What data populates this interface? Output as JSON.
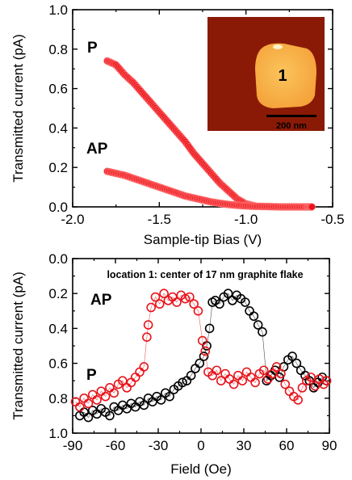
{
  "chart_data": [
    {
      "type": "scatter",
      "xlabel": "Sample-tip Bias (V)",
      "ylabel": "Transmitted current (pA)",
      "xlim": [
        -2.0,
        -0.5
      ],
      "ylim": [
        0.0,
        1.0
      ],
      "xticks": [
        "-2.0",
        "-1.5",
        "-1.0",
        "-0.5"
      ],
      "yticks": [
        "0.0",
        "0.2",
        "0.4",
        "0.6",
        "0.8",
        "1.0"
      ],
      "marker_color": "#e8141c",
      "series": [
        {
          "name": "P",
          "x": [
            -1.8,
            -1.75,
            -1.7,
            -1.65,
            -1.6,
            -1.55,
            -1.5,
            -1.45,
            -1.4,
            -1.35,
            -1.3,
            -1.25,
            -1.2,
            -1.15,
            -1.1,
            -1.05,
            -1.0,
            -0.95
          ],
          "y": [
            0.74,
            0.72,
            0.67,
            0.63,
            0.58,
            0.53,
            0.48,
            0.43,
            0.38,
            0.33,
            0.27,
            0.22,
            0.17,
            0.12,
            0.08,
            0.04,
            0.015,
            0.005
          ]
        },
        {
          "name": "AP",
          "x": [
            -1.8,
            -1.75,
            -1.7,
            -1.65,
            -1.6,
            -1.55,
            -1.5,
            -1.45,
            -1.4,
            -1.35,
            -1.3,
            -1.25,
            -1.2,
            -1.15,
            -1.1,
            -1.05,
            -1.0,
            -0.95,
            -0.9,
            -0.85,
            -0.8,
            -0.75,
            -0.7,
            -0.65,
            -0.62
          ],
          "y": [
            0.18,
            0.17,
            0.16,
            0.145,
            0.13,
            0.115,
            0.1,
            0.085,
            0.07,
            0.055,
            0.045,
            0.035,
            0.025,
            0.018,
            0.012,
            0.008,
            0.005,
            0.003,
            0.002,
            0.001,
            0.0,
            0.0,
            0.0,
            0.0,
            0.0
          ]
        }
      ],
      "inset": {
        "colors": {
          "background": "#8a1a06",
          "flake": "#f5a23a",
          "flake_center": "#fbc45c",
          "text": "#8f8a88"
        },
        "flake_label": "1",
        "scalebar_label": "200 nm"
      }
    },
    {
      "type": "scatter",
      "xlabel": "Field (Oe)",
      "ylabel": "Transmitted current (pA)",
      "annotation": "location 1:  center of 17 nm graphite flake",
      "xlim": [
        -90,
        90
      ],
      "ylim": [
        1.0,
        0.0
      ],
      "y_inverted": true,
      "xticks": [
        "-90",
        "-60",
        "-30",
        "0",
        "30",
        "60",
        "90"
      ],
      "yticks": [
        "0.0",
        "0.2",
        "0.4",
        "0.6",
        "0.8",
        "1.0"
      ],
      "labels": {
        "ap": "AP",
        "p": "P"
      },
      "series": [
        {
          "color": "#000000",
          "x": [
            -85,
            -82,
            -79,
            -76,
            -73,
            -70,
            -67,
            -64,
            -61,
            -58,
            -55,
            -52,
            -49,
            -46,
            -43,
            -40,
            -37,
            -34,
            -31,
            -28,
            -25,
            -22,
            -19,
            -16,
            -13,
            -10,
            -7,
            -4,
            -1,
            2,
            4,
            6,
            8,
            10,
            13,
            16,
            19,
            22,
            25,
            28,
            31,
            34,
            37,
            40,
            43,
            46,
            49,
            52,
            55,
            58,
            61,
            64,
            67,
            70,
            73,
            76,
            79,
            82,
            85,
            88
          ],
          "y": [
            0.9,
            0.88,
            0.91,
            0.87,
            0.89,
            0.86,
            0.88,
            0.9,
            0.85,
            0.87,
            0.84,
            0.86,
            0.83,
            0.85,
            0.82,
            0.84,
            0.8,
            0.82,
            0.79,
            0.81,
            0.77,
            0.79,
            0.75,
            0.73,
            0.71,
            0.7,
            0.67,
            0.63,
            0.6,
            0.56,
            0.5,
            0.4,
            0.25,
            0.24,
            0.26,
            0.22,
            0.2,
            0.24,
            0.21,
            0.23,
            0.25,
            0.3,
            0.33,
            0.38,
            0.42,
            0.7,
            0.67,
            0.64,
            0.68,
            0.62,
            0.58,
            0.56,
            0.6,
            0.64,
            0.67,
            0.7,
            0.74,
            0.71,
            0.68,
            0.7
          ]
        },
        {
          "color": "#e8141c",
          "x": [
            -88,
            -85,
            -82,
            -79,
            -76,
            -73,
            -70,
            -67,
            -64,
            -61,
            -58,
            -55,
            -52,
            -49,
            -46,
            -43,
            -40,
            -38,
            -37,
            -35,
            -32,
            -29,
            -26,
            -23,
            -20,
            -17,
            -14,
            -11,
            -8,
            -5,
            -2,
            1,
            3,
            5,
            8,
            11,
            14,
            17,
            20,
            23,
            26,
            29,
            32,
            35,
            38,
            41,
            44,
            47,
            50,
            53,
            56,
            59,
            62,
            65,
            68,
            71,
            74,
            77,
            80,
            83,
            86,
            88
          ],
          "y": [
            0.82,
            0.85,
            0.8,
            0.83,
            0.78,
            0.81,
            0.76,
            0.79,
            0.74,
            0.77,
            0.72,
            0.7,
            0.74,
            0.71,
            0.68,
            0.65,
            0.62,
            0.45,
            0.38,
            0.28,
            0.22,
            0.26,
            0.2,
            0.24,
            0.22,
            0.25,
            0.21,
            0.23,
            0.22,
            0.26,
            0.3,
            0.47,
            0.53,
            0.65,
            0.67,
            0.64,
            0.7,
            0.66,
            0.69,
            0.72,
            0.67,
            0.7,
            0.65,
            0.68,
            0.71,
            0.66,
            0.64,
            0.69,
            0.66,
            0.62,
            0.66,
            0.72,
            0.76,
            0.79,
            0.81,
            0.74,
            0.7,
            0.68,
            0.73,
            0.69,
            0.72,
            0.7
          ]
        }
      ]
    }
  ]
}
